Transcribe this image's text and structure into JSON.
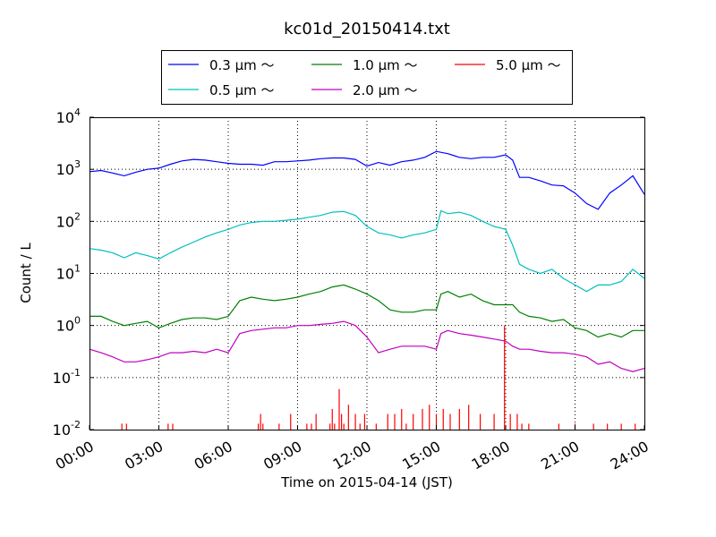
{
  "chart_data": {
    "type": "line",
    "title": "kc01d_20150414.txt",
    "xlabel": "Time on 2015-04-14 (JST)",
    "ylabel": "Count / L",
    "x_unit": "hours",
    "xlim": [
      0,
      24
    ],
    "ylim": [
      0.01,
      10000
    ],
    "y_scale": "log",
    "grid": true,
    "legend_position": "top-center",
    "x_ticks": [
      {
        "value": 0,
        "label": "00:00"
      },
      {
        "value": 3,
        "label": "03:00"
      },
      {
        "value": 6,
        "label": "06:00"
      },
      {
        "value": 9,
        "label": "09:00"
      },
      {
        "value": 12,
        "label": "12:00"
      },
      {
        "value": 15,
        "label": "15:00"
      },
      {
        "value": 18,
        "label": "18:00"
      },
      {
        "value": 21,
        "label": "21:00"
      },
      {
        "value": 24,
        "label": "24:00"
      }
    ],
    "y_ticks": [
      {
        "value": 0.01,
        "base": "10",
        "exp": "-2"
      },
      {
        "value": 0.1,
        "base": "10",
        "exp": "-1"
      },
      {
        "value": 1,
        "base": "10",
        "exp": "0"
      },
      {
        "value": 10,
        "base": "10",
        "exp": "1"
      },
      {
        "value": 100,
        "base": "10",
        "exp": "2"
      },
      {
        "value": 1000,
        "base": "10",
        "exp": "3"
      },
      {
        "value": 10000,
        "base": "10",
        "exp": "4"
      }
    ],
    "series": [
      {
        "name": "0.3 μm ～",
        "color": "#0000ff",
        "x": [
          0,
          0.5,
          1,
          1.5,
          2,
          2.5,
          3,
          3.5,
          4,
          4.5,
          5,
          5.5,
          6,
          6.5,
          7,
          7.5,
          8,
          8.5,
          9,
          9.5,
          10,
          10.5,
          11,
          11.5,
          12,
          12.5,
          13,
          13.5,
          14,
          14.5,
          15,
          15.5,
          16,
          16.5,
          17,
          17.5,
          18,
          18.3,
          18.6,
          19,
          19.5,
          20,
          20.5,
          21,
          21.5,
          22,
          22.5,
          23,
          23.5,
          24
        ],
        "y": [
          900,
          950,
          850,
          750,
          880,
          1000,
          1050,
          1250,
          1450,
          1550,
          1500,
          1400,
          1300,
          1250,
          1250,
          1200,
          1400,
          1400,
          1450,
          1500,
          1600,
          1650,
          1650,
          1550,
          1150,
          1350,
          1200,
          1400,
          1500,
          1700,
          2200,
          2000,
          1700,
          1600,
          1700,
          1700,
          1900,
          1500,
          700,
          700,
          600,
          500,
          480,
          350,
          220,
          170,
          350,
          500,
          750,
          330
        ]
      },
      {
        "name": "0.5 μm ～",
        "color": "#00bfbf",
        "x": [
          0,
          0.5,
          1,
          1.5,
          2,
          2.5,
          3,
          3.5,
          4,
          4.5,
          5,
          5.5,
          6,
          6.5,
          7,
          7.5,
          8,
          8.5,
          9,
          9.5,
          10,
          10.5,
          11,
          11.5,
          12,
          12.5,
          13,
          13.5,
          14,
          14.5,
          15,
          15.2,
          15.5,
          16,
          16.5,
          17,
          17.5,
          18,
          18.3,
          18.6,
          19,
          19.5,
          20,
          20.5,
          21,
          21.5,
          22,
          22.5,
          23,
          23.5,
          24
        ],
        "y": [
          30,
          28,
          25,
          20,
          25,
          22,
          19,
          25,
          32,
          40,
          50,
          60,
          70,
          85,
          95,
          100,
          100,
          105,
          110,
          120,
          130,
          150,
          155,
          130,
          80,
          60,
          55,
          48,
          55,
          60,
          70,
          160,
          140,
          150,
          130,
          100,
          80,
          70,
          35,
          15,
          12,
          10,
          12,
          8,
          6,
          4.5,
          6,
          6,
          7,
          12,
          8
        ]
      },
      {
        "name": "1.0 μm ～",
        "color": "#008000",
        "x": [
          0,
          0.5,
          1,
          1.5,
          2,
          2.5,
          3,
          3.5,
          4,
          4.5,
          5,
          5.5,
          6,
          6.5,
          7,
          7.5,
          8,
          8.5,
          9,
          9.5,
          10,
          10.5,
          11,
          11.5,
          12,
          12.5,
          13,
          13.5,
          14,
          14.5,
          15,
          15.2,
          15.5,
          16,
          16.5,
          17,
          17.5,
          18,
          18.3,
          18.6,
          19,
          19.5,
          20,
          20.5,
          21,
          21.5,
          22,
          22.5,
          23,
          23.5,
          24
        ],
        "y": [
          1.5,
          1.5,
          1.2,
          1.0,
          1.1,
          1.2,
          0.9,
          1.1,
          1.3,
          1.4,
          1.4,
          1.3,
          1.5,
          3.0,
          3.5,
          3.2,
          3.0,
          3.2,
          3.5,
          4.0,
          4.5,
          5.5,
          6.0,
          5.0,
          4.0,
          3.0,
          2.0,
          1.8,
          1.8,
          2.0,
          2.0,
          4.0,
          4.5,
          3.5,
          4.0,
          3.0,
          2.5,
          2.5,
          2.5,
          1.8,
          1.5,
          1.4,
          1.2,
          1.3,
          0.9,
          0.8,
          0.6,
          0.7,
          0.6,
          0.8,
          0.8
        ]
      },
      {
        "name": "2.0 μm ～",
        "color": "#bf00bf",
        "x": [
          0,
          0.5,
          1,
          1.5,
          2,
          2.5,
          3,
          3.5,
          4,
          4.5,
          5,
          5.5,
          6,
          6.5,
          7,
          7.5,
          8,
          8.5,
          9,
          9.5,
          10,
          10.5,
          11,
          11.5,
          12,
          12.5,
          13,
          13.5,
          14,
          14.5,
          15,
          15.2,
          15.5,
          16,
          16.5,
          17,
          17.5,
          18,
          18.3,
          18.6,
          19,
          19.5,
          20,
          20.5,
          21,
          21.5,
          22,
          22.5,
          23,
          23.5,
          24
        ],
        "y": [
          0.35,
          0.3,
          0.25,
          0.2,
          0.2,
          0.22,
          0.25,
          0.3,
          0.3,
          0.32,
          0.3,
          0.35,
          0.3,
          0.7,
          0.8,
          0.85,
          0.9,
          0.9,
          1.0,
          1.0,
          1.05,
          1.1,
          1.2,
          1.0,
          0.6,
          0.3,
          0.35,
          0.4,
          0.4,
          0.4,
          0.35,
          0.7,
          0.8,
          0.7,
          0.65,
          0.6,
          0.55,
          0.5,
          0.4,
          0.35,
          0.35,
          0.32,
          0.3,
          0.3,
          0.28,
          0.25,
          0.18,
          0.2,
          0.15,
          0.13,
          0.15
        ]
      },
      {
        "name": "5.0 μm ～",
        "color": "#ff0000",
        "x": [
          1.4,
          1.6,
          3.4,
          3.6,
          7.3,
          7.4,
          7.5,
          8.2,
          8.7,
          9.4,
          9.6,
          9.8,
          10.4,
          10.5,
          10.6,
          10.8,
          10.9,
          11.0,
          11.2,
          11.5,
          11.7,
          11.9,
          12.4,
          12.9,
          13.2,
          13.5,
          13.7,
          14.0,
          14.4,
          14.7,
          15.0,
          15.3,
          15.6,
          16.0,
          16.4,
          16.9,
          17.5,
          17.95,
          18.2,
          18.5,
          18.7,
          19.0,
          20.3,
          21.0,
          21.8,
          22.4,
          23.0,
          23.6
        ],
        "y": [
          0.013,
          0.013,
          0.013,
          0.013,
          0.013,
          0.02,
          0.013,
          0.013,
          0.02,
          0.013,
          0.013,
          0.02,
          0.013,
          0.025,
          0.013,
          0.06,
          0.02,
          0.013,
          0.03,
          0.02,
          0.013,
          0.02,
          0.013,
          0.02,
          0.02,
          0.025,
          0.013,
          0.02,
          0.025,
          0.03,
          0.02,
          0.025,
          0.02,
          0.025,
          0.03,
          0.02,
          0.02,
          1.0,
          0.02,
          0.02,
          0.013,
          0.013,
          0.013,
          0.013,
          0.013,
          0.013,
          0.013,
          0.013
        ]
      }
    ]
  }
}
